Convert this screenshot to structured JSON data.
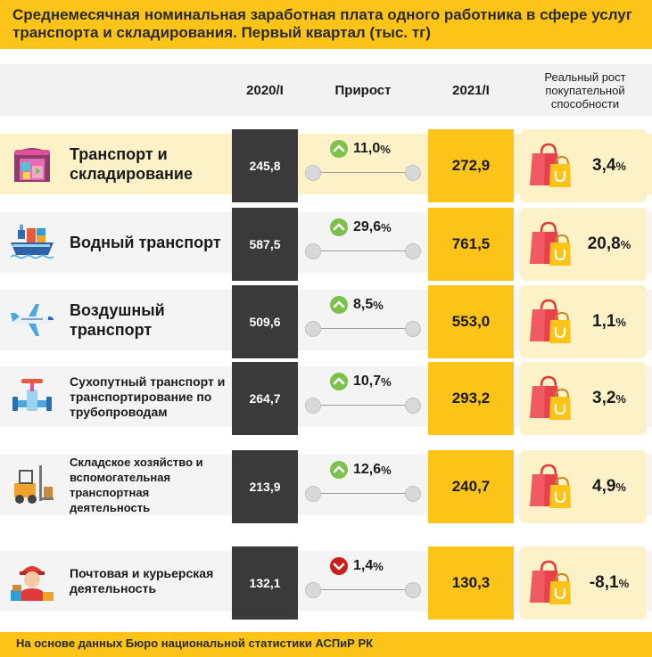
{
  "title": "Среднемесячная номинальная заработная плата одного работника в сфере услуг транспорта и складирования. Первый квартал (тыс. тг)",
  "footer": "На основе данных Бюро национальной статистики АСПиР РК",
  "colors": {
    "accent": "#fcc419",
    "dark": "#3a3a3a",
    "up": "#7cc14b",
    "down": "#c81e1e"
  },
  "chart_data": {
    "type": "table",
    "title": "Среднемесячная номинальная заработная плата одного работника в сфере услуг транспорта и складирования. Первый квартал (тыс. тг)",
    "columns": [
      "2020/I",
      "Прирост",
      "2021/I",
      "Реальный рост покупательной способности"
    ],
    "percent_sign": "%",
    "rows": [
      {
        "category": "Транспорт и складирование",
        "icon": "warehouse-icon",
        "v2020": "245,8",
        "growth": "11,0",
        "direction": "up",
        "v2021": "272,9",
        "real": "3,4",
        "label_size": "big"
      },
      {
        "category": "Водный транспорт",
        "icon": "cargo-ship-icon",
        "v2020": "587,5",
        "growth": "29,6",
        "direction": "up",
        "v2021": "761,5",
        "real": "20,8",
        "label_size": "big"
      },
      {
        "category": "Воздушный транспорт",
        "icon": "airplane-icon",
        "v2020": "509,6",
        "growth": "8,5",
        "direction": "up",
        "v2021": "553,0",
        "real": "1,1",
        "label_size": "big"
      },
      {
        "category": "Сухопутный транспорт и транспортирование по трубопроводам",
        "icon": "pipeline-valve-icon",
        "v2020": "264,7",
        "growth": "10,7",
        "direction": "up",
        "v2021": "293,2",
        "real": "3,2",
        "label_size": "mid"
      },
      {
        "category": "Складское хозяйство и вспомогательная транспортная деятельность",
        "icon": "forklift-icon",
        "v2020": "213,9",
        "growth": "12,6",
        "direction": "up",
        "v2021": "240,7",
        "real": "4,9",
        "label_size": "sm"
      },
      {
        "category": "Почтовая и курьерская деятельность",
        "icon": "courier-icon",
        "v2020": "132,1",
        "growth": "1,4",
        "direction": "down",
        "v2021": "130,3",
        "real": "-8,1",
        "label_size": "mid"
      }
    ]
  }
}
